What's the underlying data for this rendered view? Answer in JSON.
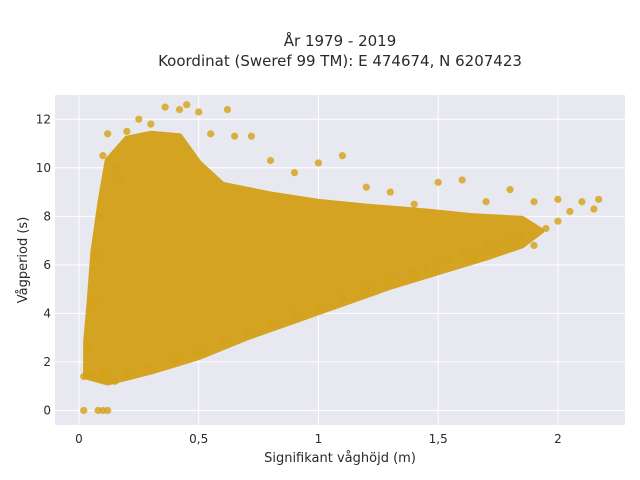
{
  "chart_data": {
    "type": "scatter",
    "title_line1": "År 1979 - 2019",
    "title_line2": "Koordinat (Sweref 99 TM): E 474674, N 6207423",
    "xlabel": "Signifikant våghöjd (m)",
    "ylabel": "Vågperiod (s)",
    "xlim": [
      -0.1,
      2.28
    ],
    "ylim": [
      -0.6,
      13.0
    ],
    "x_ticks": [
      0,
      0.5,
      1,
      1.5,
      2
    ],
    "x_tick_labels": [
      "0",
      "0,5",
      "1",
      "1,5",
      "2"
    ],
    "y_ticks": [
      0,
      2,
      4,
      6,
      8,
      10,
      12
    ],
    "y_tick_labels": [
      "0",
      "2",
      "4",
      "6",
      "8",
      "10",
      "12"
    ],
    "grid": true,
    "point_color": "#D4A017",
    "background_color": "#E8E8F0",
    "points": [
      {
        "x": 0.02,
        "y": 0.0
      },
      {
        "x": 0.08,
        "y": 0.0
      },
      {
        "x": 0.1,
        "y": 0.0
      },
      {
        "x": 0.12,
        "y": 0.0
      },
      {
        "x": 0.02,
        "y": 1.4
      },
      {
        "x": 0.05,
        "y": 1.5
      },
      {
        "x": 0.08,
        "y": 1.3
      },
      {
        "x": 0.1,
        "y": 1.6
      },
      {
        "x": 0.04,
        "y": 2.6
      },
      {
        "x": 0.06,
        "y": 4.5
      },
      {
        "x": 0.07,
        "y": 6.4
      },
      {
        "x": 0.09,
        "y": 8.0
      },
      {
        "x": 0.1,
        "y": 10.5
      },
      {
        "x": 0.12,
        "y": 11.4
      },
      {
        "x": 0.15,
        "y": 10.0
      },
      {
        "x": 0.18,
        "y": 9.5
      },
      {
        "x": 0.2,
        "y": 11.5
      },
      {
        "x": 0.25,
        "y": 12.0
      },
      {
        "x": 0.3,
        "y": 11.8
      },
      {
        "x": 0.36,
        "y": 12.5
      },
      {
        "x": 0.42,
        "y": 12.4
      },
      {
        "x": 0.45,
        "y": 12.6
      },
      {
        "x": 0.5,
        "y": 12.3
      },
      {
        "x": 0.55,
        "y": 11.4
      },
      {
        "x": 0.62,
        "y": 12.4
      },
      {
        "x": 0.65,
        "y": 11.3
      },
      {
        "x": 0.72,
        "y": 11.3
      },
      {
        "x": 0.8,
        "y": 10.3
      },
      {
        "x": 0.9,
        "y": 9.8
      },
      {
        "x": 1.0,
        "y": 10.2
      },
      {
        "x": 1.1,
        "y": 10.5
      },
      {
        "x": 1.2,
        "y": 9.2
      },
      {
        "x": 1.3,
        "y": 9.0
      },
      {
        "x": 1.4,
        "y": 8.5
      },
      {
        "x": 1.5,
        "y": 9.4
      },
      {
        "x": 1.6,
        "y": 9.5
      },
      {
        "x": 1.7,
        "y": 8.6
      },
      {
        "x": 1.8,
        "y": 9.1
      },
      {
        "x": 1.9,
        "y": 8.6
      },
      {
        "x": 2.0,
        "y": 8.7
      },
      {
        "x": 2.1,
        "y": 8.6
      },
      {
        "x": 2.17,
        "y": 8.7
      },
      {
        "x": 2.15,
        "y": 8.3
      },
      {
        "x": 2.05,
        "y": 8.2
      },
      {
        "x": 2.0,
        "y": 7.8
      },
      {
        "x": 1.95,
        "y": 7.5
      },
      {
        "x": 1.9,
        "y": 6.8
      },
      {
        "x": 1.85,
        "y": 7.2
      },
      {
        "x": 1.8,
        "y": 7.0
      },
      {
        "x": 1.75,
        "y": 6.6
      },
      {
        "x": 1.7,
        "y": 6.8
      },
      {
        "x": 1.65,
        "y": 6.3
      },
      {
        "x": 1.6,
        "y": 6.5
      },
      {
        "x": 1.55,
        "y": 6.2
      },
      {
        "x": 1.5,
        "y": 6.0
      },
      {
        "x": 1.45,
        "y": 5.9
      },
      {
        "x": 1.4,
        "y": 5.7
      },
      {
        "x": 1.3,
        "y": 5.4
      },
      {
        "x": 1.2,
        "y": 5.0
      },
      {
        "x": 1.1,
        "y": 4.6
      },
      {
        "x": 1.0,
        "y": 4.2
      },
      {
        "x": 0.9,
        "y": 4.0
      },
      {
        "x": 0.8,
        "y": 3.6
      },
      {
        "x": 0.7,
        "y": 3.2
      },
      {
        "x": 0.6,
        "y": 2.9
      },
      {
        "x": 0.5,
        "y": 2.4
      },
      {
        "x": 0.4,
        "y": 2.1
      },
      {
        "x": 0.3,
        "y": 1.8
      },
      {
        "x": 0.2,
        "y": 1.5
      },
      {
        "x": 0.15,
        "y": 1.2
      }
    ]
  }
}
